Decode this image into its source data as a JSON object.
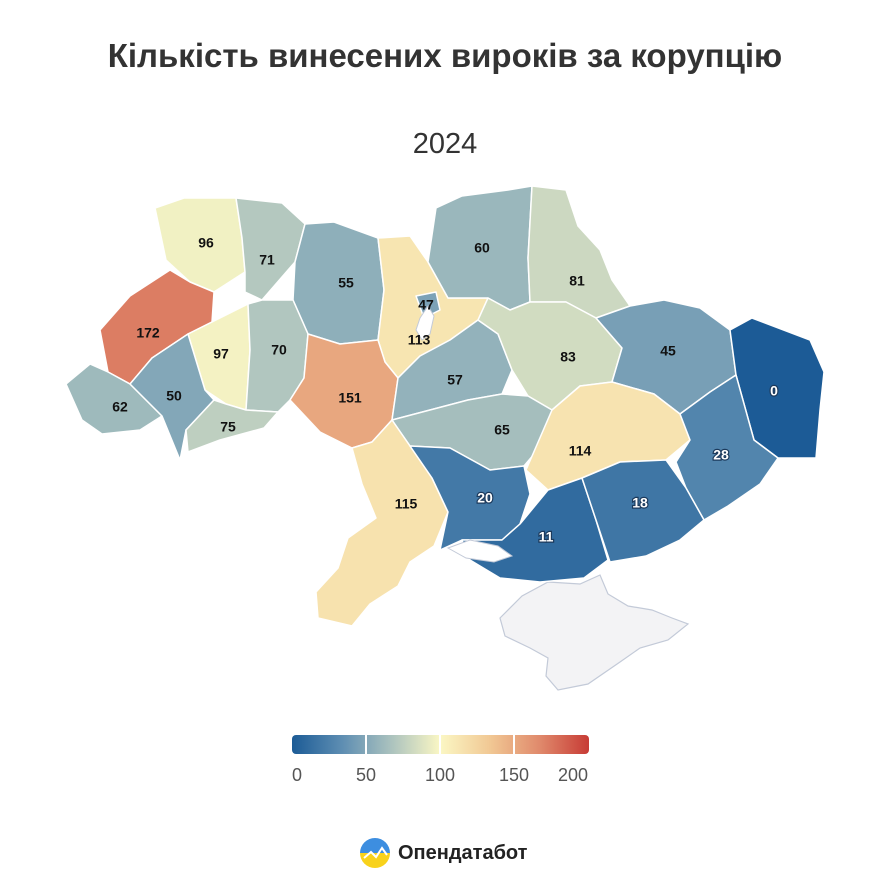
{
  "title": "Кількість винесених вироків за корупцію",
  "subtitle": "2024",
  "colors": {
    "scale_min": "#1c5b96",
    "scale_mid": "#fbf7c4",
    "scale_max": "#c73b35",
    "no_data": "#f3f3f5"
  },
  "regions": [
    {
      "name": "Волинська",
      "value": 96
    },
    {
      "name": "Рівненська",
      "value": 71
    },
    {
      "name": "Житомирська",
      "value": 55
    },
    {
      "name": "Київська",
      "value": 113
    },
    {
      "name": "м. Київ",
      "value": 47
    },
    {
      "name": "Чернігівська",
      "value": 60
    },
    {
      "name": "Сумська",
      "value": 81
    },
    {
      "name": "Львівська",
      "value": 172
    },
    {
      "name": "Тернопільська",
      "value": 97
    },
    {
      "name": "Хмельницька",
      "value": 70
    },
    {
      "name": "Вінницька",
      "value": 151
    },
    {
      "name": "Черкаська",
      "value": 57
    },
    {
      "name": "Полтавська",
      "value": 83
    },
    {
      "name": "Харківська",
      "value": 45
    },
    {
      "name": "Луганська",
      "value": 0
    },
    {
      "name": "Закарпатська",
      "value": 62
    },
    {
      "name": "Івано-Франківська",
      "value": 50
    },
    {
      "name": "Чернівецька",
      "value": 75
    },
    {
      "name": "Кіровоградська",
      "value": 65
    },
    {
      "name": "Дніпропетровська",
      "value": 114
    },
    {
      "name": "Донецька",
      "value": 28
    },
    {
      "name": "Одеська",
      "value": 115
    },
    {
      "name": "Миколаївська",
      "value": 20
    },
    {
      "name": "Херсонська",
      "value": 11
    },
    {
      "name": "Запорізька",
      "value": 18
    }
  ],
  "legend": {
    "min": 0,
    "max": 200,
    "ticks": [
      "0",
      "50",
      "100",
      "150",
      "200"
    ]
  },
  "brand": "Опендатабот"
}
